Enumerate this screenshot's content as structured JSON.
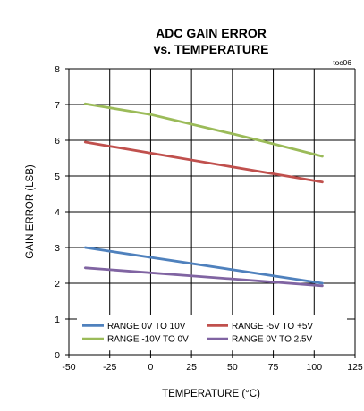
{
  "chart_data": {
    "type": "line",
    "title_lines": [
      "ADC GAIN ERROR",
      "vs. TEMPERATURE"
    ],
    "tag": "toc06",
    "xlabel": "TEMPERATURE (°C)",
    "ylabel": "GAIN ERROR  (LSB)",
    "xlim": [
      -50,
      125
    ],
    "ylim": [
      0,
      8
    ],
    "xticks": [
      -50,
      -25,
      0,
      25,
      50,
      75,
      100,
      125
    ],
    "yticks": [
      0,
      1,
      2,
      3,
      4,
      5,
      6,
      7,
      8
    ],
    "grid": true,
    "legend_position": "bottom, inside plot",
    "series": [
      {
        "name": "RANGE 0V TO 10V",
        "color": "#4f81bd",
        "x": [
          -40,
          105
        ],
        "y": [
          3.0,
          2.0
        ]
      },
      {
        "name": "RANGE -5V TO +5V",
        "color": "#c0504d",
        "x": [
          -40,
          105
        ],
        "y": [
          5.95,
          4.83
        ]
      },
      {
        "name": "RANGE -10V TO 0V",
        "color": "#9bbb59",
        "x": [
          -40,
          0,
          25,
          50,
          75,
          105
        ],
        "y": [
          7.02,
          6.72,
          6.45,
          6.18,
          5.9,
          5.55
        ]
      },
      {
        "name": "RANGE 0V TO 2.5V",
        "color": "#8064a2",
        "x": [
          -40,
          105
        ],
        "y": [
          2.43,
          1.93
        ]
      }
    ]
  }
}
